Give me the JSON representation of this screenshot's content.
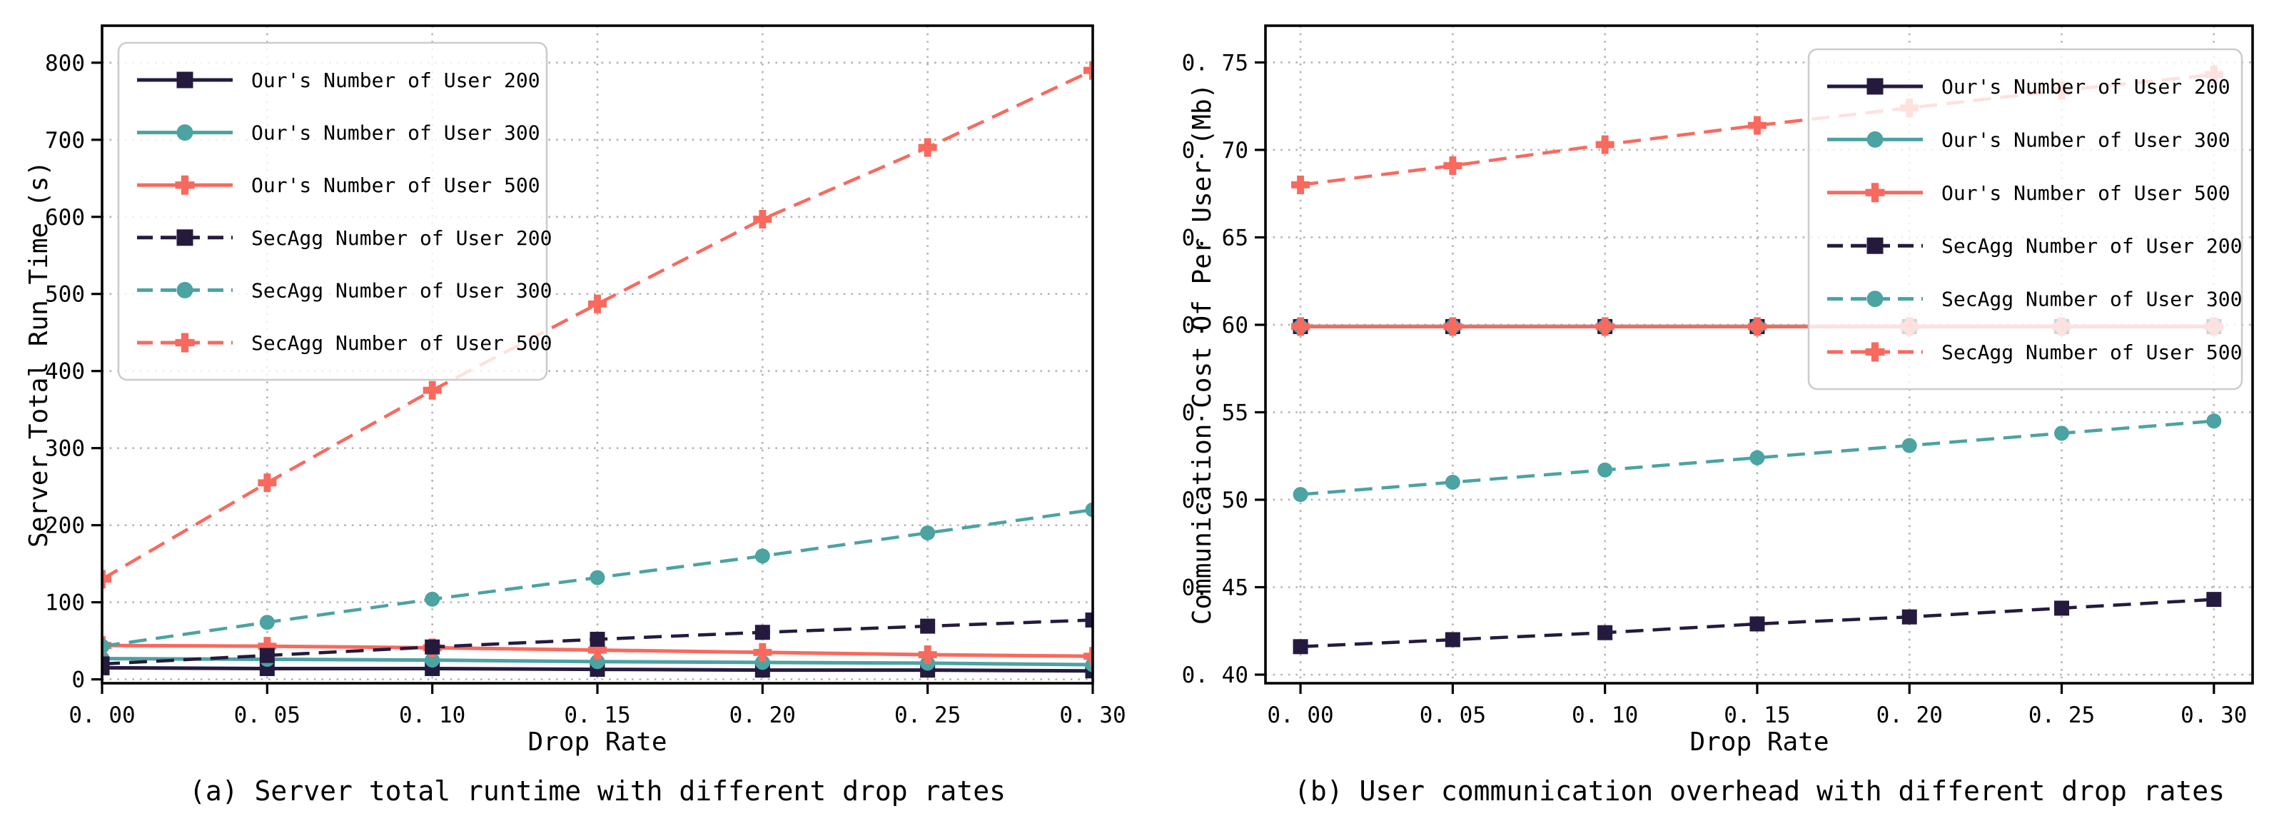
{
  "figure": {
    "background": "#ffffff"
  },
  "colors": {
    "navy": "#251a3e",
    "teal": "#4ba3a2",
    "salmon": "#f9695e",
    "grid": "#b3b3b3",
    "spine": "#000000",
    "text": "#000000",
    "legend_border": "#cccccc",
    "legend_bg": "rgba(255,255,255,0.8)"
  },
  "legend": {
    "position_a": "upper left",
    "position_b": "upper right",
    "labels": [
      "Our's Number of User 200",
      "Our's Number of User 300",
      "Our's Number of User 500",
      "SecAgg Number of User 200",
      "SecAgg Number of User 300",
      "SecAgg Number of User 500"
    ]
  },
  "captions": {
    "a": "(a) Server total runtime with different drop rates",
    "b": "(b) User communication overhead with different drop rates"
  },
  "chart_data": [
    {
      "type": "line",
      "title": "(a) Server total runtime with different drop rates",
      "xlabel": "Drop Rate",
      "ylabel": "Server Total Run Time (s)",
      "grid": true,
      "legend_position": "upper left",
      "x": [
        0.0,
        0.05,
        0.1,
        0.15,
        0.2,
        0.25,
        0.3
      ],
      "xtick_labels": [
        "0. 00",
        "0. 05",
        "0. 10",
        "0. 15",
        "0. 20",
        "0. 25",
        "0. 30"
      ],
      "ytick_values": [
        0,
        100,
        200,
        300,
        400,
        500,
        600,
        700,
        800
      ],
      "ytick_labels": [
        "0",
        "100",
        "200",
        "300",
        "400",
        "500",
        "600",
        "700",
        "800"
      ],
      "xlim": [
        0.0,
        0.3
      ],
      "ylim": [
        -5,
        848
      ],
      "series": [
        {
          "name": "Our's Number of User 200",
          "color": "navy",
          "line": "solid",
          "marker": "square",
          "values": [
            15,
            14,
            14,
            13,
            12,
            12,
            11
          ]
        },
        {
          "name": "Our's Number of User 300",
          "color": "teal",
          "line": "solid",
          "marker": "circle",
          "values": [
            27,
            26,
            25,
            23,
            22,
            21,
            19
          ]
        },
        {
          "name": "Our's Number of User 500",
          "color": "salmon",
          "line": "solid",
          "marker": "plus",
          "values": [
            44,
            43,
            41,
            38,
            35,
            32,
            30
          ]
        },
        {
          "name": "SecAgg Number of User 200",
          "color": "navy",
          "line": "dashed",
          "marker": "square",
          "values": [
            20,
            31,
            42,
            52,
            61,
            69,
            77
          ]
        },
        {
          "name": "SecAgg Number of User 300",
          "color": "teal",
          "line": "dashed",
          "marker": "circle",
          "values": [
            43,
            74,
            104,
            132,
            160,
            190,
            220
          ]
        },
        {
          "name": "SecAgg Number of User 500",
          "color": "salmon",
          "line": "dashed",
          "marker": "plus",
          "values": [
            130,
            255,
            375,
            487,
            597,
            690,
            790
          ]
        }
      ]
    },
    {
      "type": "line",
      "title": "(b) User communication overhead with different drop rates",
      "xlabel": "Drop Rate",
      "ylabel": "Communication Cost Of Per User (Mb)",
      "grid": true,
      "legend_position": "upper right",
      "x": [
        0.0,
        0.05,
        0.1,
        0.15,
        0.2,
        0.25,
        0.3
      ],
      "xtick_labels": [
        "0. 00",
        "0. 05",
        "0. 10",
        "0. 15",
        "0. 20",
        "0. 25",
        "0. 30"
      ],
      "ytick_values": [
        0.4,
        0.45,
        0.5,
        0.55,
        0.6,
        0.65,
        0.7,
        0.75
      ],
      "ytick_labels": [
        "0. 40",
        "0. 45",
        "0. 50",
        "0. 55",
        "0. 60",
        "0. 65",
        "0. 70",
        "0. 75"
      ],
      "xlim": [
        -0.0115,
        0.3127
      ],
      "ylim": [
        0.3951,
        0.771
      ],
      "series": [
        {
          "name": "Our's Number of User 200",
          "color": "navy",
          "line": "solid",
          "marker": "square",
          "values": [
            0.599,
            0.599,
            0.599,
            0.599,
            0.599,
            0.599,
            0.599
          ]
        },
        {
          "name": "Our's Number of User 300",
          "color": "teal",
          "line": "solid",
          "marker": "circle",
          "values": [
            0.599,
            0.599,
            0.599,
            0.599,
            0.599,
            0.599,
            0.599
          ]
        },
        {
          "name": "Our's Number of User 500",
          "color": "salmon",
          "line": "solid",
          "marker": "plus",
          "values": [
            0.599,
            0.599,
            0.599,
            0.599,
            0.599,
            0.599,
            0.599
          ]
        },
        {
          "name": "SecAgg Number of User 200",
          "color": "navy",
          "line": "dashed",
          "marker": "square",
          "values": [
            0.416,
            0.42,
            0.424,
            0.429,
            0.433,
            0.438,
            0.443
          ]
        },
        {
          "name": "SecAgg Number of User 300",
          "color": "teal",
          "line": "dashed",
          "marker": "circle",
          "values": [
            0.503,
            0.51,
            0.517,
            0.524,
            0.531,
            0.538,
            0.545
          ]
        },
        {
          "name": "SecAgg Number of User 500",
          "color": "salmon",
          "line": "dashed",
          "marker": "plus",
          "values": [
            0.68,
            0.691,
            0.703,
            0.714,
            0.724,
            0.734,
            0.743
          ]
        }
      ]
    }
  ]
}
